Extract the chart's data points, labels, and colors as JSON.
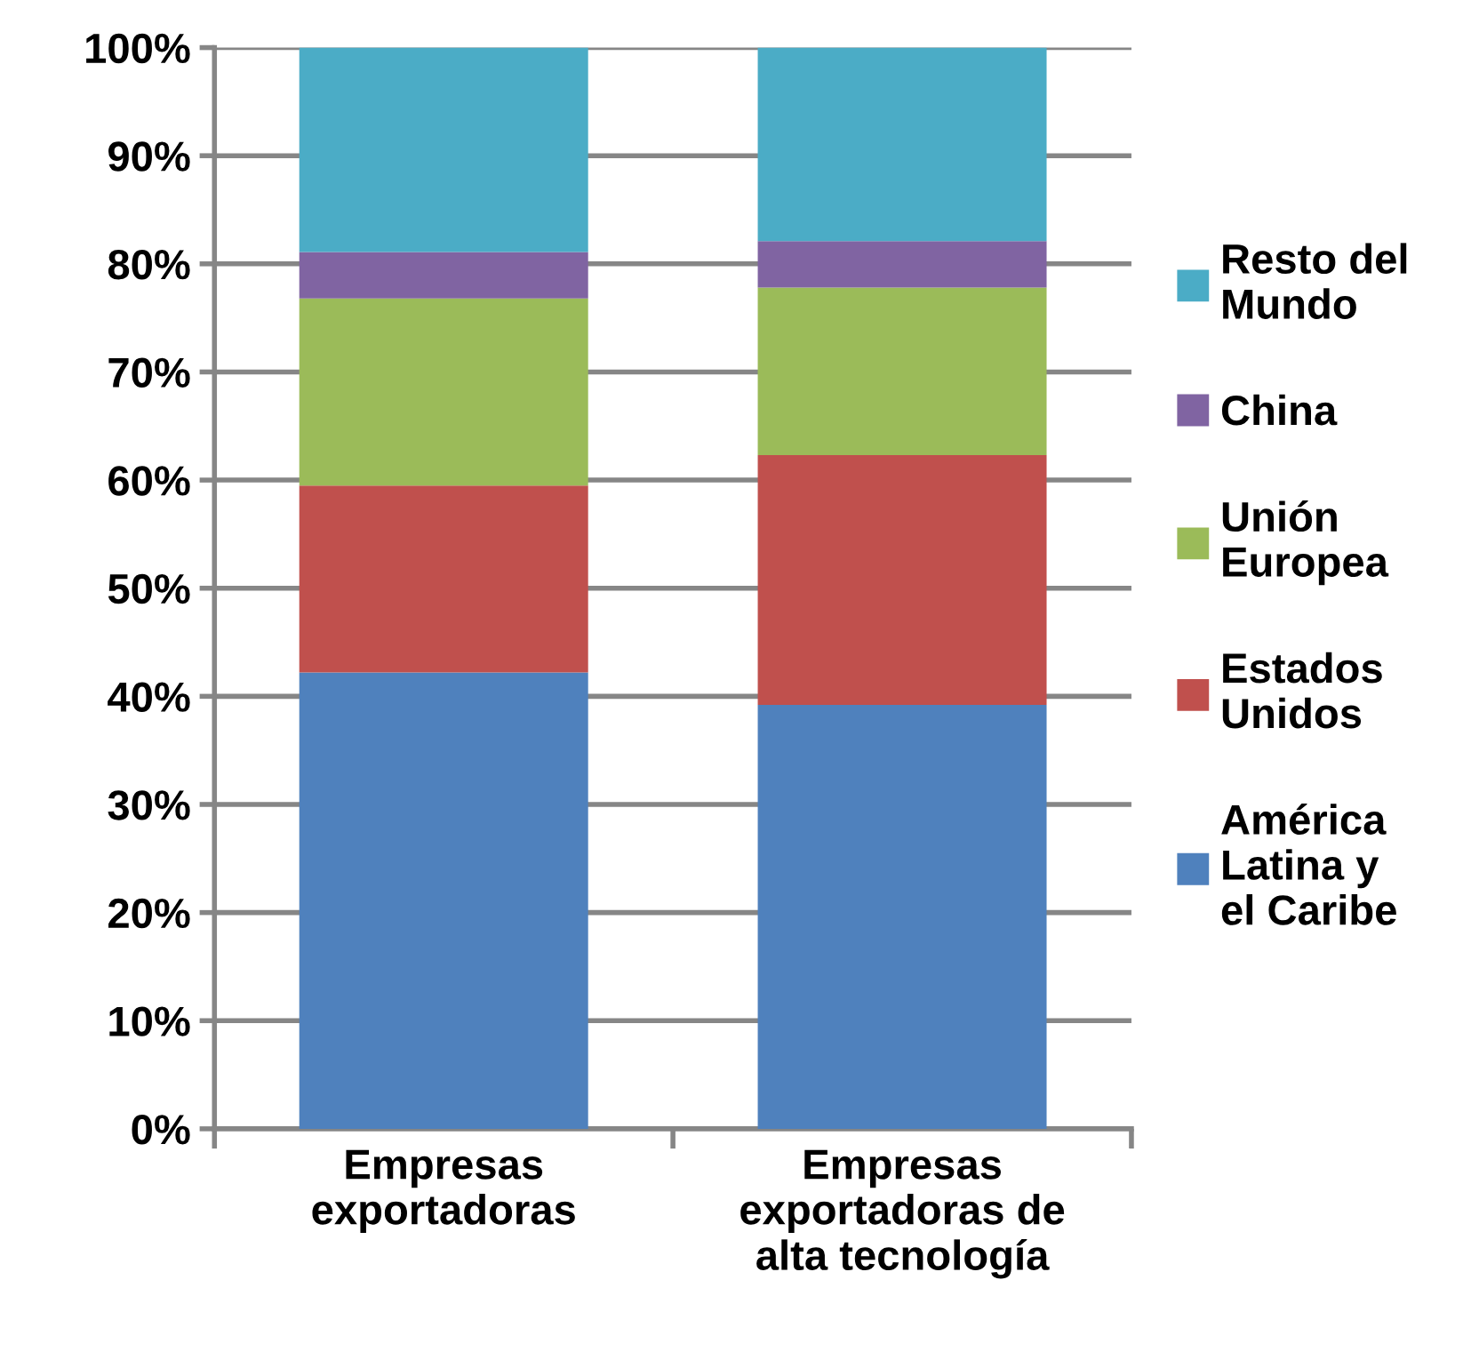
{
  "chart_data": {
    "type": "bar",
    "stacked": true,
    "categories": [
      "Empresas\nexportadoras",
      "Empresas\nexportadoras de\nalta tecnología"
    ],
    "series": [
      {
        "name": "América\nLatina y\nel Caribe",
        "color": "#4f81bd",
        "values": [
          42.2,
          39.2
        ]
      },
      {
        "name": "Estados\nUnidos",
        "color": "#c0504d",
        "values": [
          17.3,
          23.1
        ]
      },
      {
        "name": "Unión\nEuropea",
        "color": "#9bbb59",
        "values": [
          17.3,
          15.5
        ]
      },
      {
        "name": "China",
        "color": "#8064a2",
        "values": [
          4.3,
          4.3
        ]
      },
      {
        "name": "Resto del\nMundo",
        "color": "#4bacc6",
        "values": [
          18.9,
          17.9
        ]
      }
    ],
    "ylim": [
      0,
      100
    ],
    "yticks": [
      {
        "value": 0,
        "label": "0%"
      },
      {
        "value": 10,
        "label": "10%"
      },
      {
        "value": 20,
        "label": "20%"
      },
      {
        "value": 30,
        "label": "30%"
      },
      {
        "value": 40,
        "label": "40%"
      },
      {
        "value": 50,
        "label": "50%"
      },
      {
        "value": 60,
        "label": "60%"
      },
      {
        "value": 70,
        "label": "70%"
      },
      {
        "value": 80,
        "label": "80%"
      },
      {
        "value": 90,
        "label": "90%"
      },
      {
        "value": 100,
        "label": "100%"
      }
    ],
    "grid": "y",
    "legend": "right"
  }
}
